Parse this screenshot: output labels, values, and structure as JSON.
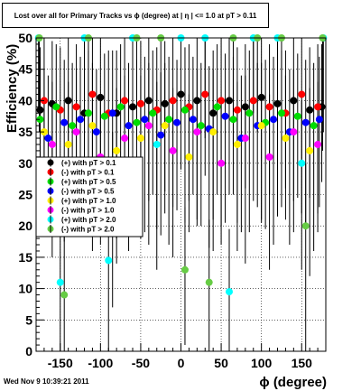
{
  "chart_data": {
    "type": "scatter",
    "title": "Lost over all for Primary Tracks vs ϕ (degree) at | η | <= 1.0 at pT > 0.11",
    "xlabel": "ϕ (degree)",
    "ylabel": "Efficiency (%)",
    "xlim": [
      -180,
      180
    ],
    "ylim": [
      0,
      50
    ],
    "x_ticks": [
      -150,
      -100,
      -50,
      0,
      50,
      100,
      150
    ],
    "y_ticks": [
      0,
      5,
      10,
      15,
      20,
      25,
      30,
      35,
      40,
      45,
      50
    ],
    "grid": true,
    "legend_position": "middle-left",
    "series": [
      {
        "name": "(+) with pT > 0.1",
        "color": "#000000",
        "x": [
          -175,
          -160,
          -140,
          -120,
          -100,
          -80,
          -60,
          -40,
          -20,
          0,
          20,
          40,
          60,
          80,
          100,
          120,
          140,
          160,
          175
        ],
        "values": [
          38.5,
          39.5,
          40,
          38,
          40.5,
          38,
          39,
          40,
          39.5,
          41,
          40,
          38,
          40,
          39,
          40.5,
          39.5,
          40,
          38.5,
          39
        ]
      },
      {
        "name": "(-) with pT > 0.1",
        "color": "#ff0000",
        "x": [
          -170,
          -150,
          -130,
          -110,
          -90,
          -70,
          -50,
          -30,
          -10,
          10,
          30,
          50,
          70,
          90,
          110,
          130,
          150,
          170
        ],
        "values": [
          40,
          38.5,
          39,
          41,
          38,
          40,
          39.5,
          38.5,
          40,
          39,
          41,
          40,
          38.5,
          40,
          39,
          38,
          41,
          39
        ]
      },
      {
        "name": "(+) with pT > 0.5",
        "color": "#00dd00",
        "x": [
          -175,
          -155,
          -135,
          -115,
          -95,
          -75,
          -55,
          -35,
          -15,
          5,
          25,
          45,
          65,
          85,
          105,
          125,
          145,
          165
        ],
        "values": [
          37,
          39,
          36,
          38,
          37.5,
          39,
          36.5,
          38,
          37,
          38.5,
          36,
          39,
          37,
          38,
          36.5,
          38,
          37.5,
          36
        ]
      },
      {
        "name": "(-) with pT > 0.5",
        "color": "#0000ff",
        "x": [
          -165,
          -145,
          -125,
          -105,
          -85,
          -65,
          -45,
          -25,
          -5,
          15,
          35,
          55,
          75,
          95,
          115,
          135,
          155,
          172
        ],
        "values": [
          34,
          36.5,
          37,
          35,
          38,
          36,
          37,
          34.5,
          36.5,
          37,
          35.5,
          37.5,
          34,
          36,
          37,
          35,
          36.5,
          37
        ]
      },
      {
        "name": "(+) with pT > 1.0",
        "color": "#ffee00",
        "x": [
          -170,
          -140,
          -110,
          -80,
          -50,
          -20,
          10,
          40,
          70,
          100,
          130,
          160
        ],
        "values": [
          35,
          33,
          36,
          32,
          34,
          36,
          31,
          35,
          33,
          36,
          34,
          32
        ]
      },
      {
        "name": "(-) with pT > 1.0",
        "color": "#ff00ff",
        "x": [
          -160,
          -130,
          -100,
          -70,
          -40,
          -10,
          20,
          50,
          80,
          110,
          140,
          170
        ],
        "values": [
          33,
          35,
          31,
          34,
          36,
          32,
          35,
          30,
          34,
          31,
          35,
          33
        ]
      },
      {
        "name": "(+) with pT > 2.0",
        "color": "#00ffff",
        "x": [
          -177,
          -150,
          -120,
          -90,
          -60,
          -30,
          0,
          30,
          60,
          90,
          120,
          150,
          177
        ],
        "values": [
          50,
          11,
          50,
          14.5,
          50,
          33,
          50,
          50,
          9.5,
          50,
          50,
          30,
          50
        ]
      },
      {
        "name": "(-) with pT > 2.0",
        "color": "#66cc44",
        "x": [
          -176,
          -145,
          -115,
          -85,
          -55,
          -25,
          5,
          35,
          65,
          95,
          125,
          155,
          176
        ],
        "values": [
          50,
          9,
          50,
          25,
          50,
          50,
          13,
          11,
          50,
          50,
          50,
          20,
          50
        ]
      }
    ]
  },
  "timestamp": "Wed Nov  9 10:39:21 2011"
}
